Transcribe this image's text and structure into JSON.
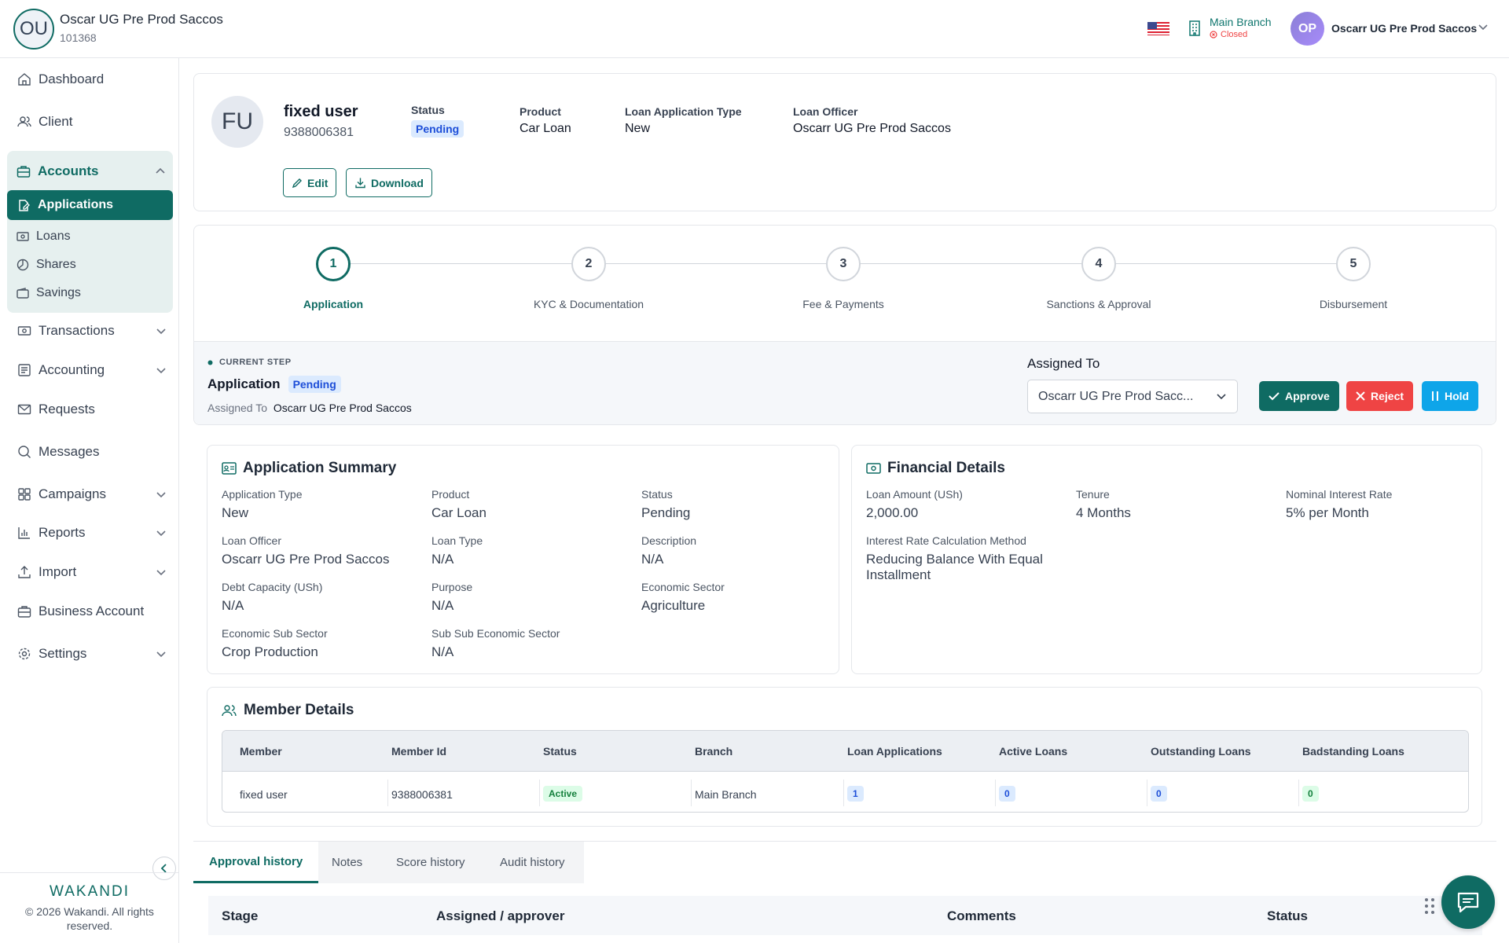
{
  "header": {
    "org_initials": "OU",
    "org_name": "Oscar UG Pre Prod Saccos",
    "org_id": "101368",
    "branch_name": "Main Branch",
    "branch_status": "Closed",
    "user_initials": "OP",
    "user_name": "Oscarr UG Pre Prod Saccos"
  },
  "sidebar": {
    "items": [
      {
        "label": "Dashboard",
        "icon": "home-icon"
      },
      {
        "label": "Client",
        "icon": "users-icon"
      },
      {
        "label": "Transactions",
        "icon": "cash-icon"
      },
      {
        "label": "Accounting",
        "icon": "ledger-icon"
      },
      {
        "label": "Requests",
        "icon": "mail-icon"
      },
      {
        "label": "Messages",
        "icon": "message-icon"
      },
      {
        "label": "Campaigns",
        "icon": "grid-icon"
      },
      {
        "label": "Reports",
        "icon": "bar-chart-icon"
      },
      {
        "label": "Import",
        "icon": "upload-icon"
      },
      {
        "label": "Business Account",
        "icon": "briefcase-icon"
      },
      {
        "label": "Settings",
        "icon": "gear-icon"
      }
    ],
    "accounts": {
      "label": "Accounts",
      "sub": [
        {
          "label": "Applications",
          "active": true
        },
        {
          "label": "Loans"
        },
        {
          "label": "Shares"
        },
        {
          "label": "Savings"
        }
      ]
    },
    "brand": "WAKANDI",
    "copyright": "© 2026 Wakandi. All rights reserved."
  },
  "profile": {
    "initials": "FU",
    "name": "fixed user",
    "member_id": "9388006381",
    "status_label": "Status",
    "status_value": "Pending",
    "product_label": "Product",
    "product_value": "Car Loan",
    "type_label": "Loan Application Type",
    "type_value": "New",
    "officer_label": "Loan Officer",
    "officer_value": "Oscarr UG Pre Prod Saccos",
    "edit_label": "Edit",
    "download_label": "Download"
  },
  "steps": [
    {
      "num": "1",
      "label": "Application",
      "active": true
    },
    {
      "num": "2",
      "label": "KYC & Documentation"
    },
    {
      "num": "3",
      "label": "Fee & Payments"
    },
    {
      "num": "4",
      "label": "Sanctions & Approval"
    },
    {
      "num": "5",
      "label": "Disbursement"
    }
  ],
  "current_step": {
    "caption": "CURRENT STEP",
    "name": "Application",
    "status": "Pending",
    "assigned_prefix": "Assigned To",
    "assigned_name": "Oscarr UG Pre Prod Saccos",
    "assigned_to_label": "Assigned To",
    "assigned_select": "Oscarr UG Pre Prod Sacc...",
    "approve": "Approve",
    "reject": "Reject",
    "hold": "Hold"
  },
  "summary": {
    "title": "Application Summary",
    "fields": [
      {
        "label": "Application Type",
        "value": "New"
      },
      {
        "label": "Product",
        "value": "Car Loan"
      },
      {
        "label": "Status",
        "value": "Pending"
      },
      {
        "label": "Loan Officer",
        "value": "Oscarr UG Pre Prod Saccos"
      },
      {
        "label": "Loan Type",
        "value": "N/A"
      },
      {
        "label": "Description",
        "value": "N/A"
      },
      {
        "label": "Debt Capacity (USh)",
        "value": "N/A"
      },
      {
        "label": "Purpose",
        "value": "N/A"
      },
      {
        "label": "Economic Sector",
        "value": "Agriculture"
      },
      {
        "label": "Economic Sub Sector",
        "value": "Crop Production"
      },
      {
        "label": "Sub Sub Economic Sector",
        "value": "N/A"
      }
    ]
  },
  "financial": {
    "title": "Financial Details",
    "fields": [
      {
        "label": "Loan Amount (USh)",
        "value": "2,000.00"
      },
      {
        "label": "Tenure",
        "value": "4 Months"
      },
      {
        "label": "Nominal Interest Rate",
        "value": "5% per Month"
      },
      {
        "label": "Interest Rate Calculation Method",
        "value": "Reducing Balance With Equal Installment"
      }
    ]
  },
  "members": {
    "title": "Member Details",
    "columns": [
      "Member",
      "Member Id",
      "Status",
      "Branch",
      "Loan Applications",
      "Active Loans",
      "Outstanding Loans",
      "Badstanding Loans"
    ],
    "row": [
      "fixed user",
      "9388006381",
      "Active",
      "Main Branch",
      "1",
      "0",
      "0",
      "0"
    ]
  },
  "tabs": [
    "Approval history",
    "Notes",
    "Score history",
    "Audit history"
  ],
  "history_columns": [
    "Stage",
    "Assigned / approver",
    "Comments",
    "Status"
  ],
  "colors": {
    "primary": "#0f6b63",
    "reject": "#ef4444",
    "hold": "#0ea5e9"
  }
}
